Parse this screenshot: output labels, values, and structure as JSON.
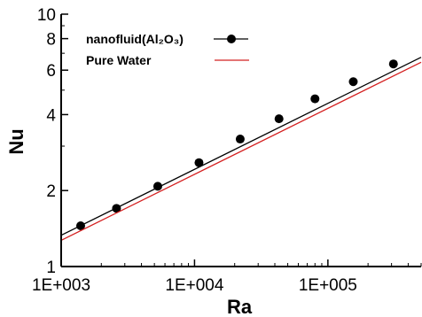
{
  "chart_data": {
    "type": "line",
    "xlabel": "Ra",
    "ylabel": "Nu",
    "x_scale": "log",
    "y_scale": "log",
    "xlim": [
      1000,
      500000
    ],
    "ylim": [
      1,
      10
    ],
    "x_ticks": [
      1000,
      10000,
      100000
    ],
    "x_tick_labels": [
      "1E+003",
      "1E+004",
      "1E+005"
    ],
    "y_ticks": [
      1,
      2,
      4,
      6,
      8,
      10
    ],
    "y_tick_labels": [
      "1",
      "2",
      "4",
      "6",
      "8",
      "10"
    ],
    "legend_position": "top-left",
    "grid": false,
    "series": [
      {
        "name": "nanofluid(Al₂O₃)",
        "color": "#000000",
        "marker": "circle",
        "line_range": [
          1000,
          500000
        ],
        "line_y": [
          1.33,
          6.75
        ],
        "points": {
          "x": [
            1400,
            2600,
            5300,
            10800,
            22000,
            43000,
            80000,
            155000,
            310000
          ],
          "y": [
            1.45,
            1.7,
            2.08,
            2.58,
            3.2,
            3.85,
            4.62,
            5.4,
            6.35
          ]
        }
      },
      {
        "name": "Pure Water",
        "color": "#d42020",
        "marker": "none",
        "line_range": [
          1000,
          500000
        ],
        "line_y": [
          1.27,
          6.45
        ]
      }
    ]
  }
}
